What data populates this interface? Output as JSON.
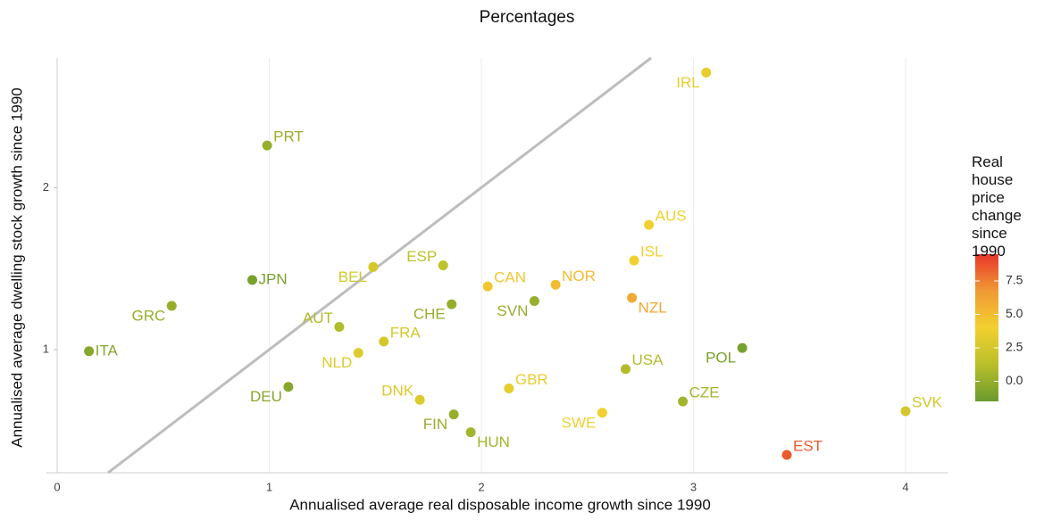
{
  "chart_data": {
    "type": "scatter",
    "title": "Percentages",
    "x_label": "Annualised average real disposable income growth since 1990",
    "y_label": "Annualised average dwelling stock growth since 1990",
    "color_label": "Real house price change since 1990",
    "labels": [
      "ITA",
      "GRC",
      "JPN",
      "PRT",
      "DEU",
      "BEL",
      "AUT",
      "NLD",
      "FRA",
      "DNK",
      "ESP",
      "CHE",
      "FIN",
      "HUN",
      "CAN",
      "GBR",
      "SVN",
      "NOR",
      "SWE",
      "USA",
      "ISL",
      "NZL",
      "AUS",
      "IRL",
      "CZE",
      "POL",
      "EST",
      "SVK"
    ],
    "x": [
      0.15,
      0.54,
      0.92,
      0.99,
      1.09,
      1.49,
      1.33,
      1.42,
      1.54,
      1.71,
      1.82,
      1.86,
      1.87,
      1.95,
      2.03,
      2.13,
      2.25,
      2.35,
      2.57,
      2.68,
      2.72,
      2.71,
      2.79,
      3.06,
      2.95,
      3.23,
      3.44,
      4.0
    ],
    "values": [
      0.99,
      1.27,
      1.43,
      2.26,
      0.77,
      1.51,
      1.14,
      0.98,
      1.05,
      0.69,
      1.52,
      1.28,
      0.6,
      0.49,
      1.39,
      0.76,
      1.3,
      1.4,
      0.61,
      0.88,
      1.55,
      1.32,
      1.77,
      2.71,
      0.68,
      1.01,
      0.35,
      0.62
    ],
    "color_values": [
      -0.5,
      0,
      -1,
      0,
      -0.5,
      2.5,
      1,
      3,
      2.5,
      3,
      1.5,
      0,
      0,
      0.5,
      4.5,
      3.5,
      0,
      5,
      4,
      1,
      4,
      6,
      4,
      3.5,
      0.5,
      -1,
      8.5,
      2.5
    ],
    "colorscale": [
      "#6a9a2e",
      "#b9bf2a",
      "#f2d02f",
      "#f19a35",
      "#e8362a"
    ],
    "clim": [
      -1.5,
      9.5
    ],
    "cticks": [
      {
        "value": 0,
        "label": "0.0"
      },
      2.5,
      {
        "value": 5,
        "label": "5.0"
      },
      7.5
    ],
    "xlim": [
      0,
      4.2
    ],
    "ylim": [
      0.24,
      2.8
    ],
    "xticks": [
      0,
      1,
      2,
      3,
      4
    ],
    "yticks": [
      1,
      2
    ],
    "grid_x": true,
    "diagonal_line": true
  }
}
